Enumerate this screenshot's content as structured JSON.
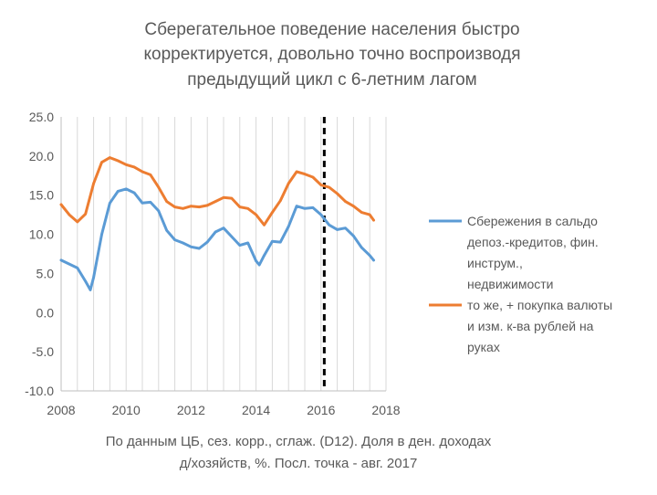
{
  "chart_data": {
    "type": "line",
    "title_lines": [
      "Сберегательное поведение населения быстро",
      "корректируется, довольно точно воспроизводя",
      "предыдущий цикл с 6-летним лагом"
    ],
    "caption_lines": [
      "По данным ЦБ, сез. корр., сглаж. (D12). Доля в ден. доходах",
      "д/хозяйств, %. Посл. точка - авг. 2017"
    ],
    "xlim": [
      2008,
      2018
    ],
    "ylim": [
      -10,
      25
    ],
    "x_ticks": [
      2008,
      2010,
      2012,
      2014,
      2016,
      2018
    ],
    "x_tick_labels": [
      "2008",
      "2010",
      "2012",
      "2014",
      "2016",
      "2018"
    ],
    "y_ticks": [
      -10,
      -5,
      0,
      5,
      10,
      15,
      20,
      25
    ],
    "y_tick_labels": [
      "-10.0",
      "-5.0",
      "0.0",
      "5.0",
      "10.0",
      "15.0",
      "20.0",
      "25.0"
    ],
    "grid": "vertical",
    "vertical_marker_x": 2016.1,
    "legend_position": "right",
    "series": [
      {
        "name": "Сбережения в сальдо депоз.-кредитов, фин. инструм., недвижимости",
        "legend_lines": [
          "Сбережения в сальдо",
          "депоз.-кредитов, фин.",
          "инструм.,",
          "недвижимости"
        ],
        "color": "#5b9bd5",
        "x": [
          2008.0,
          2008.25,
          2008.5,
          2008.75,
          2008.9,
          2009.0,
          2009.25,
          2009.5,
          2009.75,
          2010.0,
          2010.25,
          2010.5,
          2010.75,
          2011.0,
          2011.25,
          2011.5,
          2011.75,
          2012.0,
          2012.25,
          2012.5,
          2012.75,
          2013.0,
          2013.25,
          2013.5,
          2013.75,
          2014.0,
          2014.1,
          2014.25,
          2014.5,
          2014.75,
          2015.0,
          2015.25,
          2015.5,
          2015.75,
          2016.0,
          2016.25,
          2016.5,
          2016.75,
          2017.0,
          2017.25,
          2017.5,
          2017.62
        ],
        "y": [
          6.7,
          6.2,
          5.7,
          4.0,
          2.9,
          4.5,
          10.0,
          14.0,
          15.5,
          15.8,
          15.3,
          14.0,
          14.1,
          13.0,
          10.5,
          9.3,
          8.9,
          8.4,
          8.2,
          9.0,
          10.3,
          10.8,
          9.7,
          8.6,
          8.9,
          6.6,
          6.1,
          7.3,
          9.1,
          9.0,
          11.0,
          13.6,
          13.3,
          13.4,
          12.5,
          11.2,
          10.6,
          10.8,
          9.8,
          8.3,
          7.3,
          6.7
        ]
      },
      {
        "name": "то же, + покупка валюты и изм. к-ва рублей на руках",
        "legend_lines": [
          "то же, + покупка валюты",
          "и изм. к-ва рублей на",
          "руках"
        ],
        "color": "#ed7d31",
        "x": [
          2008.0,
          2008.25,
          2008.5,
          2008.75,
          2009.0,
          2009.25,
          2009.5,
          2009.75,
          2010.0,
          2010.25,
          2010.5,
          2010.75,
          2011.0,
          2011.25,
          2011.5,
          2011.75,
          2012.0,
          2012.25,
          2012.5,
          2012.75,
          2013.0,
          2013.25,
          2013.5,
          2013.75,
          2014.0,
          2014.25,
          2014.5,
          2014.75,
          2015.0,
          2015.25,
          2015.5,
          2015.75,
          2016.0,
          2016.25,
          2016.5,
          2016.75,
          2017.0,
          2017.25,
          2017.5,
          2017.62
        ],
        "y": [
          13.8,
          12.5,
          11.6,
          12.6,
          16.5,
          19.2,
          19.8,
          19.4,
          18.9,
          18.6,
          18.0,
          17.6,
          16.0,
          14.2,
          13.5,
          13.3,
          13.6,
          13.5,
          13.7,
          14.2,
          14.7,
          14.6,
          13.5,
          13.3,
          12.5,
          11.2,
          12.8,
          14.3,
          16.5,
          18.0,
          17.7,
          17.3,
          16.3,
          16.0,
          15.2,
          14.2,
          13.6,
          12.8,
          12.5,
          11.8
        ]
      }
    ]
  }
}
